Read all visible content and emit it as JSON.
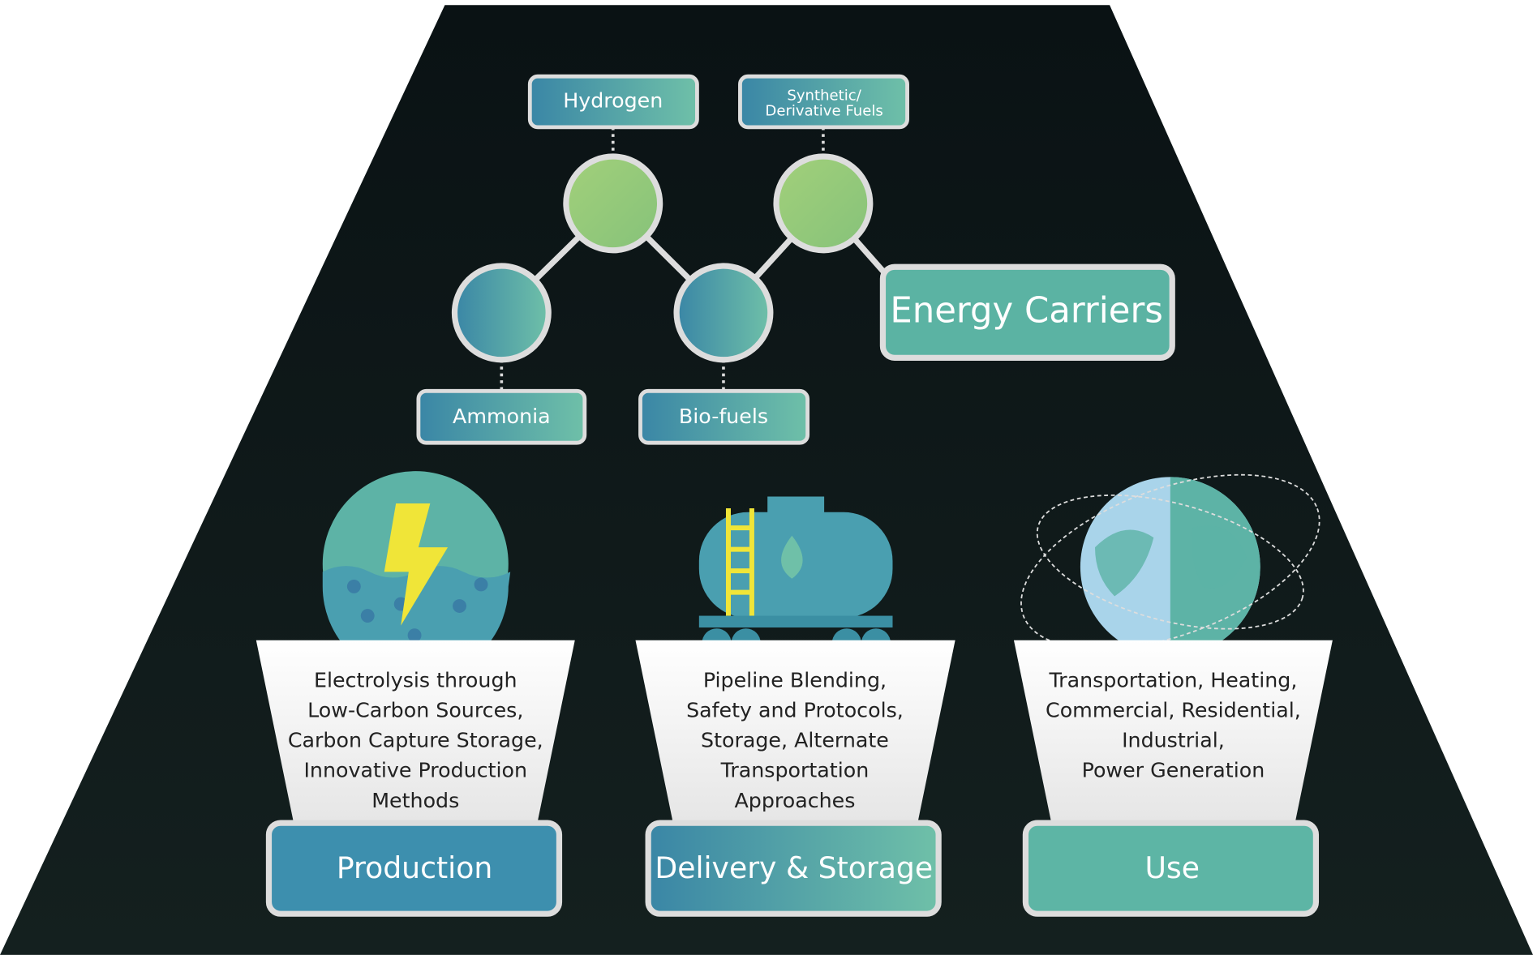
{
  "carriers": {
    "title": "Energy Carriers",
    "items": [
      {
        "label": [
          "Hydrogen"
        ]
      },
      {
        "label": [
          "Synthetic/",
          "Derivative Fuels"
        ]
      },
      {
        "label": [
          "Ammonia"
        ]
      },
      {
        "label": [
          "Bio-fuels"
        ]
      }
    ]
  },
  "pillars": [
    {
      "title": "Production",
      "lines": [
        "Electrolysis through",
        "Low-Carbon Sources,",
        "Carbon Capture Storage,",
        "Innovative Production",
        "Methods"
      ]
    },
    {
      "title": "Delivery & Storage",
      "lines": [
        "Pipeline Blending,",
        "Safety and Protocols,",
        "Storage, Alternate",
        "Transportation",
        "Approaches"
      ]
    },
    {
      "title": "Use",
      "lines": [
        "Transportation, Heating,",
        "Commercial, Residential,",
        "Industrial,",
        "Power Generation"
      ]
    }
  ]
}
